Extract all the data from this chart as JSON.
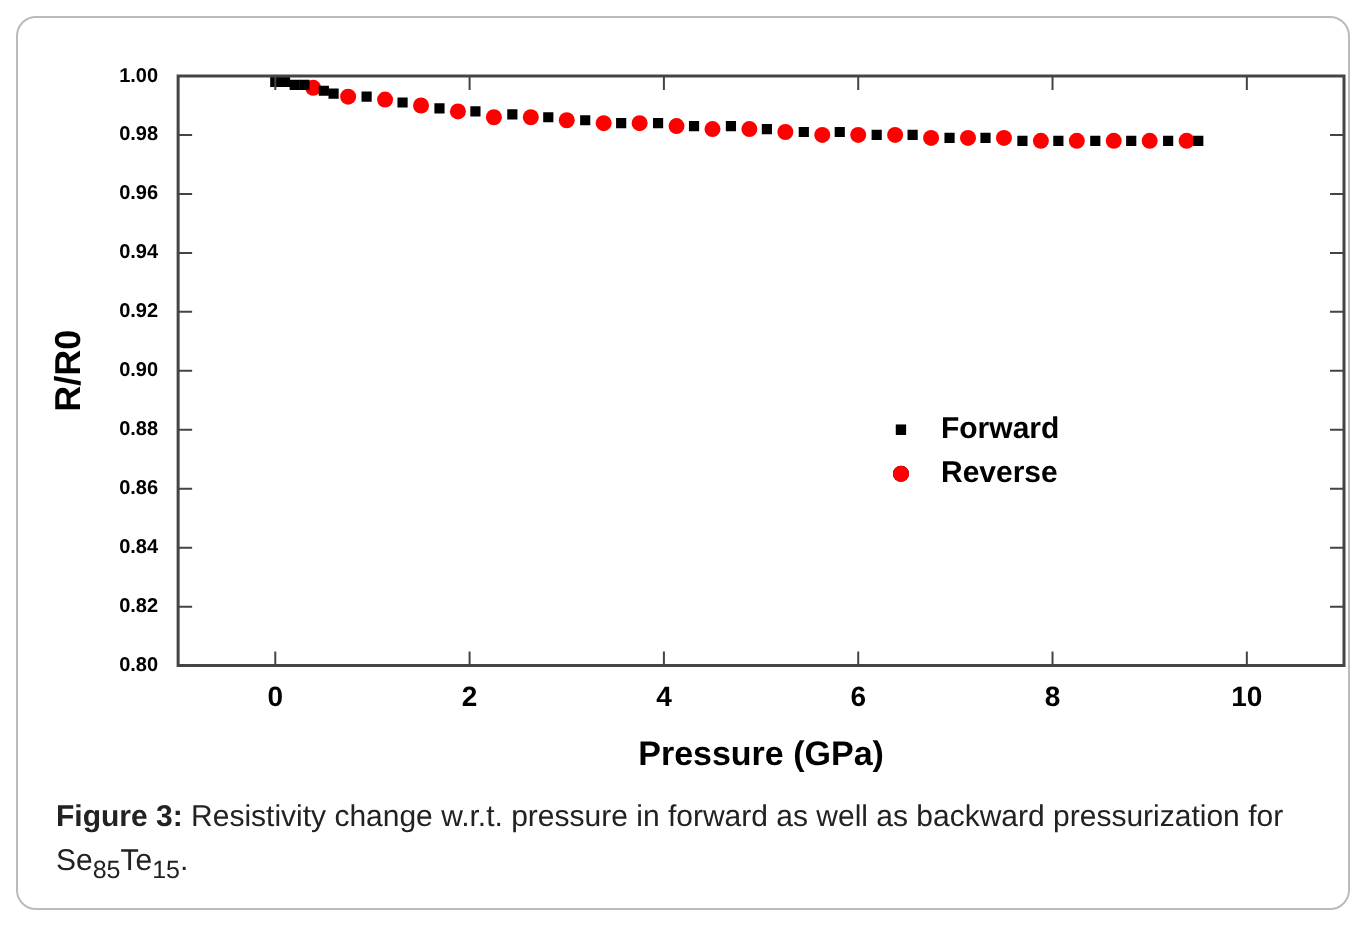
{
  "chart_data": {
    "type": "scatter",
    "xlabel": "Pressure (GPa)",
    "ylabel": "R/R0",
    "xlim": [
      -1,
      11
    ],
    "xticks": [
      0,
      2,
      4,
      6,
      8,
      10
    ],
    "ylim": [
      0.8,
      1.0
    ],
    "yticks": [
      {
        "value": 0.8,
        "label": "0.80"
      },
      {
        "value": 0.82,
        "label": "0.82"
      },
      {
        "value": 0.84,
        "label": "0.84"
      },
      {
        "value": 0.86,
        "label": "0.86"
      },
      {
        "value": 0.88,
        "label": "0.88"
      },
      {
        "value": 0.9,
        "label": "0.90"
      },
      {
        "value": 0.92,
        "label": "0.92"
      },
      {
        "value": 0.94,
        "label": "0.94"
      },
      {
        "value": 0.96,
        "label": "0.96"
      },
      {
        "value": 0.98,
        "label": "0.98"
      },
      {
        "value": 1.0,
        "label": "1.00"
      }
    ],
    "grid": false,
    "legend": "right",
    "series": [
      {
        "name": "Forward",
        "color": "#000000",
        "marker": "square",
        "x": [
          0,
          0.1,
          0.2,
          0.3,
          0.5,
          0.6,
          0.94,
          1.31,
          1.69,
          2.06,
          2.44,
          2.81,
          3.19,
          3.56,
          3.94,
          4.31,
          4.69,
          5.06,
          5.44,
          5.81,
          6.19,
          6.56,
          6.94,
          7.31,
          7.69,
          8.06,
          8.44,
          8.81,
          9.19,
          9.5
        ],
        "values": [
          0.998,
          0.998,
          0.997,
          0.997,
          0.995,
          0.994,
          0.993,
          0.991,
          0.989,
          0.988,
          0.987,
          0.986,
          0.985,
          0.984,
          0.984,
          0.983,
          0.983,
          0.982,
          0.981,
          0.981,
          0.98,
          0.98,
          0.979,
          0.979,
          0.978,
          0.978,
          0.978,
          0.978,
          0.978,
          0.978
        ]
      },
      {
        "name": "Reverse",
        "color": "#ff0000",
        "marker": "circle",
        "x": [
          0.39,
          0.75,
          1.13,
          1.5,
          1.88,
          2.25,
          2.63,
          3.0,
          3.38,
          3.75,
          4.13,
          4.5,
          4.88,
          5.25,
          5.63,
          6.0,
          6.38,
          6.75,
          7.13,
          7.5,
          7.88,
          8.25,
          8.63,
          9.0,
          9.38
        ],
        "values": [
          0.996,
          0.993,
          0.992,
          0.99,
          0.988,
          0.986,
          0.986,
          0.985,
          0.984,
          0.984,
          0.983,
          0.982,
          0.982,
          0.981,
          0.98,
          0.98,
          0.98,
          0.979,
          0.979,
          0.979,
          0.978,
          0.978,
          0.978,
          0.978,
          0.978
        ]
      }
    ],
    "annotations": [
      "Figure 3:",
      "Resistivity change w.r.t. pressure in forward as well as backward pressurization for Se$_{85}$Te$_{15}$."
    ]
  }
}
